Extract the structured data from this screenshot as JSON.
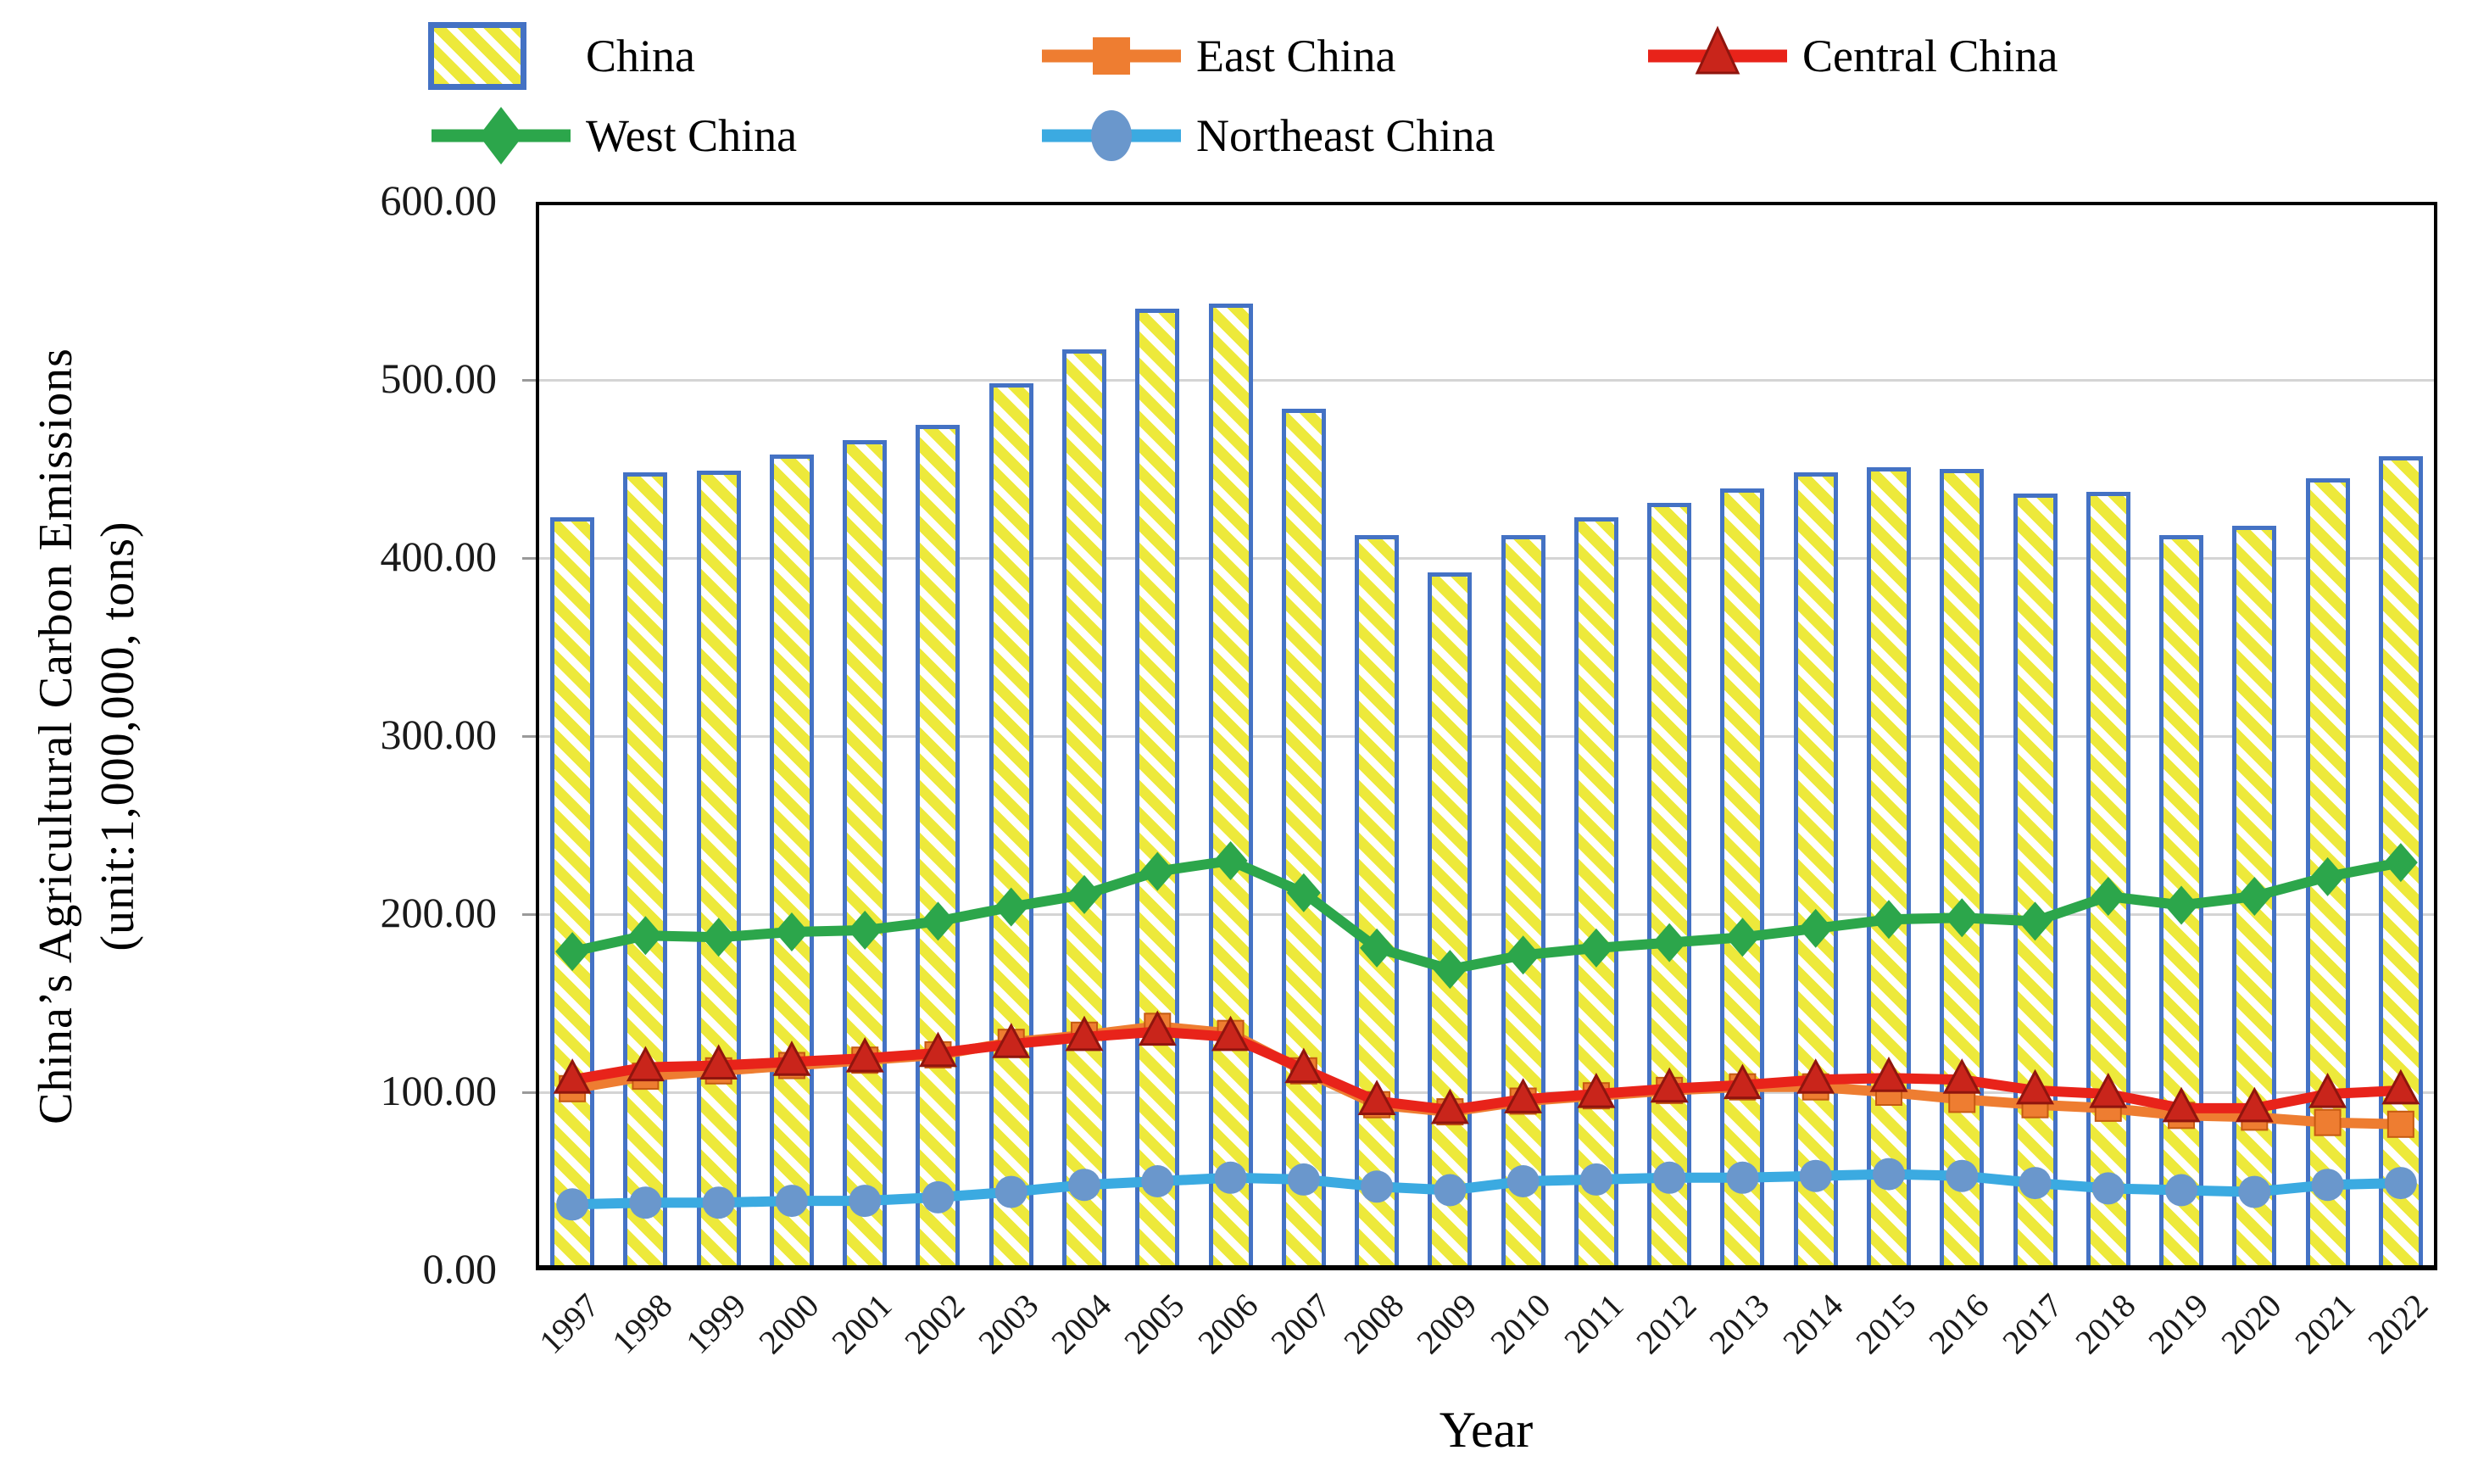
{
  "figure": {
    "ylabel_line1": "China’s Agricultural Carbon Emissions",
    "ylabel_line2": "(unit:1,000,000, tons)",
    "xlabel": "Year"
  },
  "axis": {
    "yticks": [
      {
        "value": 600,
        "label": "600.00"
      },
      {
        "value": 500,
        "label": "500.00"
      },
      {
        "value": 400,
        "label": "400.00"
      },
      {
        "value": 300,
        "label": "300.00"
      },
      {
        "value": 200,
        "label": "200.00"
      },
      {
        "value": 100,
        "label": "100.00"
      },
      {
        "value": 0,
        "label": "0.00"
      }
    ]
  },
  "colors": {
    "bar_border": "#4472C4",
    "bar_hatch_yellow": "#EDE93B",
    "gridline": "#D4D4D4",
    "east_china": "#EE7D31",
    "central_china_line": "#E8231A",
    "central_china_marker": "#C9251B",
    "west_china": "#2CA64B",
    "northeast_china_line": "#3BAAE1",
    "northeast_china_marker": "#6A97CC"
  },
  "chart_data": {
    "type": "bar+line combo",
    "title": "",
    "xlabel": "Year",
    "ylabel": "China’s Agricultural Carbon Emissions (unit:1,000,000, tons)",
    "ylim": [
      0,
      600
    ],
    "grid": "horizontal light-gray lines every 100",
    "legend_position": "top",
    "categories": [
      "1997",
      "1998",
      "1999",
      "2000",
      "2001",
      "2002",
      "2003",
      "2004",
      "2005",
      "2006",
      "2007",
      "2008",
      "2009",
      "2010",
      "2011",
      "2012",
      "2013",
      "2014",
      "2015",
      "2016",
      "2017",
      "2018",
      "2019",
      "2020",
      "2021",
      "2022"
    ],
    "series": [
      {
        "name": "China",
        "type": "bar",
        "border_color": "#4472C4",
        "hatch_color": "#EDE93B",
        "values": [
          423,
          448,
          449,
          458,
          466,
          475,
          498,
          517,
          540,
          543,
          484,
          413,
          392,
          413,
          423,
          431,
          439,
          448,
          451,
          450,
          436,
          437,
          413,
          418,
          445,
          457
        ]
      },
      {
        "name": "East China",
        "type": "line",
        "marker": "square",
        "color": "#EE7D31",
        "marker_fill": "#EE7D31",
        "marker_stroke": "#C55A11",
        "values": [
          102,
          109,
          112,
          115,
          118,
          121,
          128,
          132,
          137,
          133,
          112,
          93,
          89,
          95,
          98,
          101,
          103,
          103,
          100,
          96,
          93,
          91,
          87,
          86,
          83,
          82
        ]
      },
      {
        "name": "Central China",
        "type": "line",
        "marker": "triangle",
        "color": "#E8231A",
        "marker_fill": "#C9251B",
        "marker_stroke": "#8F150E",
        "values": [
          107,
          114,
          115,
          117,
          119,
          122,
          127,
          131,
          134,
          131,
          113,
          95,
          90,
          96,
          99,
          102,
          104,
          107,
          108,
          107,
          101,
          99,
          91,
          91,
          99,
          101
        ]
      },
      {
        "name": "West China",
        "type": "line",
        "marker": "diamond",
        "color": "#2CA64B",
        "marker_fill": "#2CA64B",
        "marker_stroke": "#1E8A3C",
        "values": [
          179,
          188,
          187,
          190,
          191,
          196,
          204,
          211,
          224,
          230,
          212,
          181,
          169,
          177,
          181,
          184,
          187,
          192,
          197,
          198,
          196,
          210,
          205,
          210,
          221,
          229
        ]
      },
      {
        "name": "Northeast China",
        "type": "line",
        "marker": "circle",
        "color": "#3BAAE1",
        "marker_fill": "#6A97CC",
        "marker_stroke": "#6A97CC",
        "values": [
          37,
          38,
          38,
          39,
          39,
          41,
          44,
          48,
          50,
          52,
          51,
          47,
          45,
          50,
          51,
          52,
          52,
          53,
          54,
          53,
          49,
          46,
          45,
          44,
          48,
          49
        ]
      }
    ]
  }
}
